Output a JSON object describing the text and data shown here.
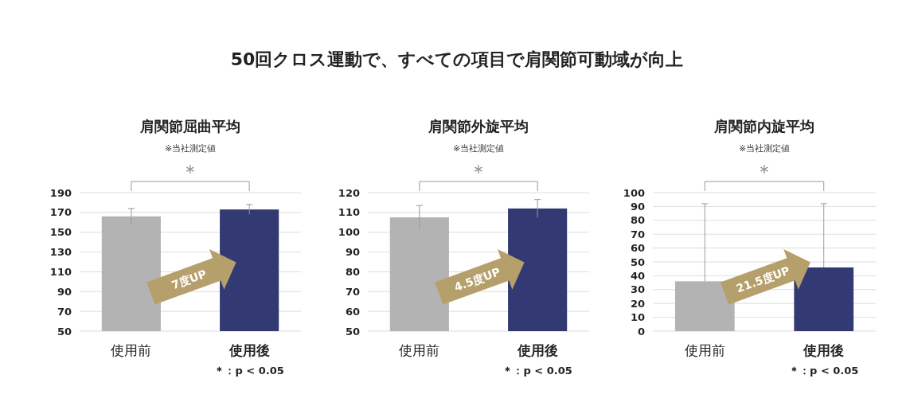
{
  "chart_data": [
    {
      "type": "other",
      "title": "50回クロス運動で、すべての項目で肩関節可動域が向上"
    },
    {
      "type": "bar",
      "title": "肩関節屈曲平均",
      "annotations": [
        "※当社測定値",
        "＊",
        "7度UP",
        "＊：p < 0.05"
      ],
      "categories": [
        "使用前",
        "使用後"
      ],
      "values": [
        166,
        173
      ],
      "colors": [
        "#b3b3b3",
        "#333a73"
      ],
      "errors": [
        8,
        5
      ],
      "ylim": [
        50,
        190
      ],
      "yticks": [
        50,
        70,
        90,
        110,
        130,
        150,
        170,
        190
      ],
      "grid": "y"
    },
    {
      "type": "bar",
      "title": "肩関節外旋平均",
      "annotations": [
        "※当社測定値",
        "＊",
        "4.5度UP",
        "＊：p < 0.05"
      ],
      "categories": [
        "使用前",
        "使用後"
      ],
      "values": [
        107.5,
        112
      ],
      "colors": [
        "#b3b3b3",
        "#333a73"
      ],
      "errors": [
        6,
        4.5
      ],
      "ylim": [
        50,
        120
      ],
      "yticks": [
        50,
        60,
        70,
        80,
        90,
        100,
        110,
        120
      ],
      "grid": "y"
    },
    {
      "type": "bar",
      "title": "肩関節内旋平均",
      "annotations": [
        "※当社測定値",
        "＊",
        "21.5度UP",
        "＊：p < 0.05"
      ],
      "categories": [
        "使用前",
        "使用後"
      ],
      "values": [
        36,
        46
      ],
      "colors": [
        "#b3b3b3",
        "#333a73"
      ],
      "errors": [
        [
          36,
          92
        ],
        [
          46,
          92
        ]
      ],
      "ylim": [
        0,
        100
      ],
      "yticks": [
        0,
        10,
        20,
        30,
        40,
        50,
        60,
        70,
        80,
        90,
        100
      ],
      "grid": "y"
    }
  ]
}
